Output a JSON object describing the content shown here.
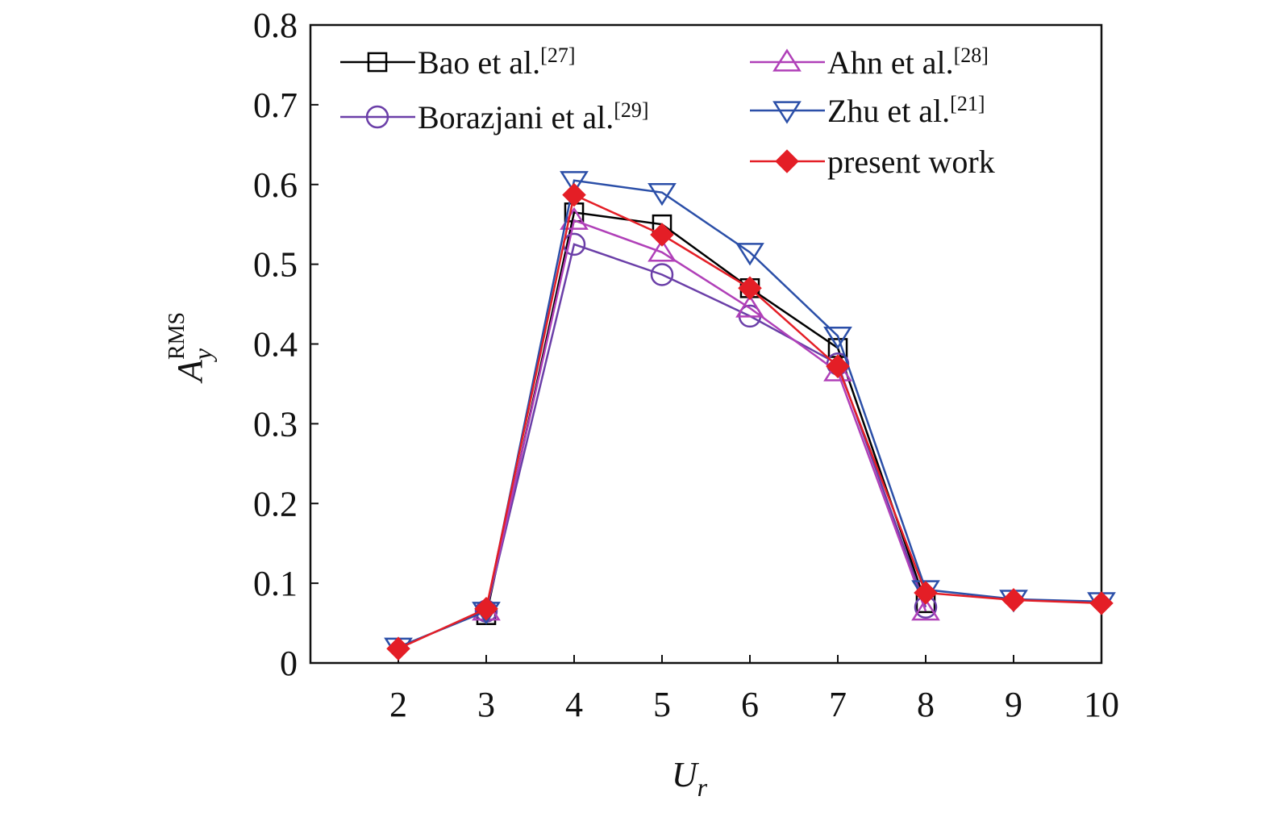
{
  "chart_data": {
    "type": "line",
    "xlabel": {
      "main": "U",
      "sub": "r"
    },
    "ylabel": {
      "main": "A",
      "sub": "y",
      "sup": "RMS"
    },
    "x": [
      2,
      3,
      4,
      5,
      6,
      7,
      8,
      9,
      10
    ],
    "xlim": [
      1,
      10
    ],
    "xticks": [
      2,
      3,
      4,
      5,
      6,
      7,
      8,
      9,
      10
    ],
    "ylim": [
      0,
      0.8
    ],
    "yticks": [
      0,
      0.1,
      0.2,
      0.3,
      0.4,
      0.5,
      0.6,
      0.7,
      0.8
    ],
    "series": [
      {
        "name": "Bao et al.",
        "ref": "[27]",
        "color": "#000000",
        "marker": "square",
        "values": [
          null,
          0.06,
          0.565,
          0.55,
          0.47,
          0.395,
          0.075,
          null,
          null
        ]
      },
      {
        "name": "Borazjani et al.",
        "ref": "[29]",
        "color": "#6b3fa8",
        "marker": "circle",
        "values": [
          null,
          0.065,
          0.525,
          0.487,
          0.435,
          0.375,
          0.07,
          null,
          null
        ]
      },
      {
        "name": "Ahn et al.",
        "ref": "[28]",
        "color": "#b040b8",
        "marker": "triangle-up",
        "values": [
          null,
          0.065,
          0.555,
          0.515,
          0.445,
          0.365,
          0.065,
          null,
          null
        ]
      },
      {
        "name": "Zhu et al.",
        "ref": "[21]",
        "color": "#2b4fa8",
        "marker": "triangle-down",
        "values": [
          0.02,
          0.065,
          0.605,
          0.59,
          0.515,
          0.41,
          0.092,
          0.08,
          0.077
        ]
      },
      {
        "name": "present work",
        "color": "#e41e26",
        "marker": "diamond",
        "values": [
          0.018,
          0.068,
          0.587,
          0.537,
          0.47,
          0.372,
          0.088,
          0.079,
          0.075
        ]
      }
    ]
  }
}
